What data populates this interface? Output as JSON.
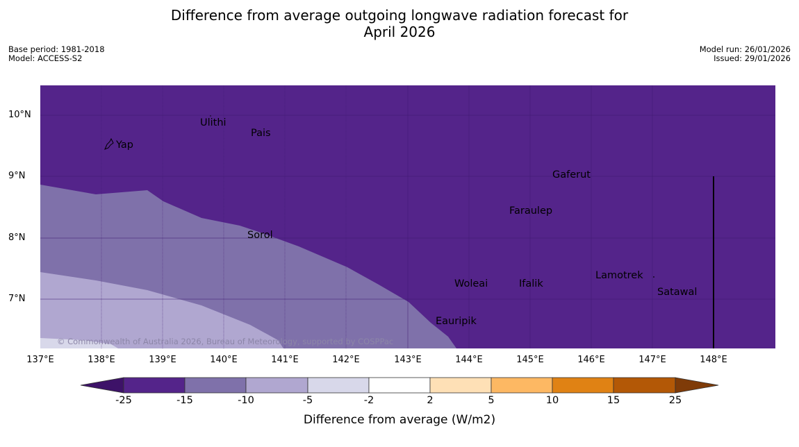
{
  "header": {
    "title_line1": "Difference from average outgoing longwave radiation forecast for",
    "title_line2": "April 2026",
    "base_period": "Base period: 1981-2018",
    "model": "Model: ACCESS-S2",
    "model_run": "Model run: 26/01/2026",
    "issued": "Issued: 29/01/2026"
  },
  "map": {
    "lat_labels": [
      "10°N",
      "9°N",
      "8°N",
      "7°N"
    ],
    "lon_labels": [
      "137°E",
      "138°E",
      "139°E",
      "140°E",
      "141°E",
      "142°E",
      "143°E",
      "144°E",
      "145°E",
      "146°E",
      "147°E",
      "148°E"
    ],
    "places": [
      "Yap",
      "Ulithi",
      "Pais",
      "Gaferut",
      "Faraulep",
      "Sorol",
      "Woleai",
      "Ifalik",
      "Lamotrek",
      "Satawal",
      "Eauripik"
    ],
    "copyright": "© Commonwealth of Australia 2026, Bureau of Meteorology, supported by COSPPac"
  },
  "colorbar": {
    "ticks": [
      "-25",
      "-15",
      "-10",
      "-5",
      "-2",
      "2",
      "5",
      "10",
      "15",
      "25"
    ],
    "colors": [
      "#3d1268",
      "#54248a",
      "#7f71aa",
      "#b0a7d0",
      "#d8d8ea",
      "#ffffff",
      "#fee0b6",
      "#fdb863",
      "#e08214",
      "#b35806",
      "#7f3b08"
    ],
    "label": "Difference from average (W/m2)"
  }
}
